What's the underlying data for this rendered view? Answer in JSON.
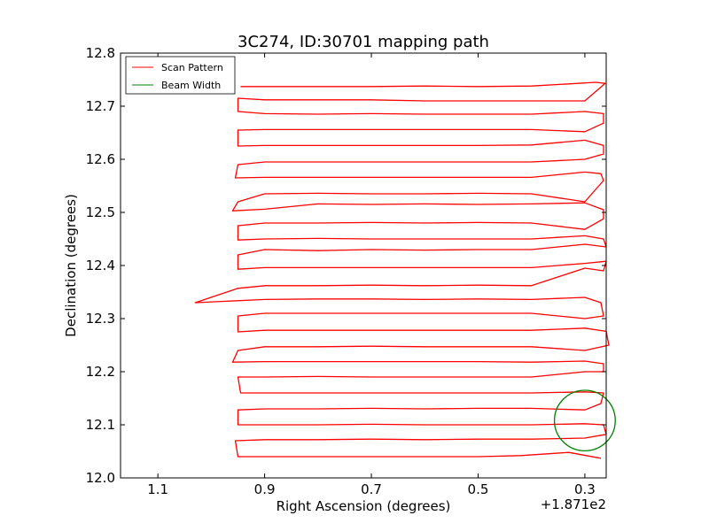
{
  "chart_data": {
    "type": "line",
    "title": "3C274, ID:30701 mapping path",
    "xlabel": "Right Ascension (degrees)",
    "ylabel": "Declination (degrees)",
    "x_offset_label": "+1.871e2",
    "xlim": [
      1.17,
      0.26
    ],
    "ylim": [
      12.0,
      12.8
    ],
    "x_inverted": true,
    "xticks": [
      1.1,
      0.9,
      0.7,
      0.5,
      0.3
    ],
    "xtick_labels": [
      "1.1",
      "0.9",
      "0.7",
      "0.5",
      "0.3"
    ],
    "yticks": [
      12.0,
      12.1,
      12.2,
      12.3,
      12.4,
      12.5,
      12.6,
      12.7,
      12.8
    ],
    "ytick_labels": [
      "12.0",
      "12.1",
      "12.2",
      "12.3",
      "12.4",
      "12.5",
      "12.6",
      "12.7",
      "12.8"
    ],
    "grid": false,
    "legend_position": "top-left",
    "series": [
      {
        "name": "Scan Pattern",
        "color": "#ff0000",
        "points": [
          [
            0.27,
            12.037
          ],
          [
            0.33,
            12.048
          ],
          [
            0.42,
            12.042
          ],
          [
            0.5,
            12.04
          ],
          [
            0.6,
            12.04
          ],
          [
            0.7,
            12.04
          ],
          [
            0.8,
            12.04
          ],
          [
            0.9,
            12.04
          ],
          [
            0.95,
            12.04
          ],
          [
            0.955,
            12.07
          ],
          [
            0.9,
            12.072
          ],
          [
            0.8,
            12.072
          ],
          [
            0.7,
            12.073
          ],
          [
            0.6,
            12.072
          ],
          [
            0.5,
            12.073
          ],
          [
            0.4,
            12.073
          ],
          [
            0.3,
            12.075
          ],
          [
            0.26,
            12.082
          ],
          [
            0.265,
            12.1
          ],
          [
            0.3,
            12.102
          ],
          [
            0.4,
            12.1
          ],
          [
            0.5,
            12.1
          ],
          [
            0.6,
            12.1
          ],
          [
            0.7,
            12.101
          ],
          [
            0.8,
            12.1
          ],
          [
            0.9,
            12.1
          ],
          [
            0.95,
            12.1
          ],
          [
            0.95,
            12.128
          ],
          [
            0.9,
            12.13
          ],
          [
            0.8,
            12.13
          ],
          [
            0.7,
            12.131
          ],
          [
            0.6,
            12.13
          ],
          [
            0.5,
            12.131
          ],
          [
            0.4,
            12.131
          ],
          [
            0.3,
            12.128
          ],
          [
            0.27,
            12.14
          ],
          [
            0.265,
            12.16
          ],
          [
            0.3,
            12.162
          ],
          [
            0.4,
            12.16
          ],
          [
            0.5,
            12.16
          ],
          [
            0.6,
            12.16
          ],
          [
            0.7,
            12.16
          ],
          [
            0.8,
            12.16
          ],
          [
            0.9,
            12.16
          ],
          [
            0.945,
            12.16
          ],
          [
            0.95,
            12.19
          ],
          [
            0.9,
            12.19
          ],
          [
            0.8,
            12.191
          ],
          [
            0.7,
            12.19
          ],
          [
            0.6,
            12.19
          ],
          [
            0.5,
            12.19
          ],
          [
            0.4,
            12.19
          ],
          [
            0.3,
            12.2
          ],
          [
            0.265,
            12.2
          ],
          [
            0.265,
            12.215
          ],
          [
            0.3,
            12.22
          ],
          [
            0.4,
            12.218
          ],
          [
            0.5,
            12.219
          ],
          [
            0.6,
            12.219
          ],
          [
            0.7,
            12.219
          ],
          [
            0.8,
            12.219
          ],
          [
            0.9,
            12.219
          ],
          [
            0.96,
            12.218
          ],
          [
            0.95,
            12.24
          ],
          [
            0.9,
            12.247
          ],
          [
            0.8,
            12.247
          ],
          [
            0.7,
            12.248
          ],
          [
            0.6,
            12.247
          ],
          [
            0.5,
            12.247
          ],
          [
            0.4,
            12.247
          ],
          [
            0.3,
            12.24
          ],
          [
            0.255,
            12.25
          ],
          [
            0.26,
            12.276
          ],
          [
            0.3,
            12.282
          ],
          [
            0.4,
            12.278
          ],
          [
            0.5,
            12.278
          ],
          [
            0.6,
            12.278
          ],
          [
            0.7,
            12.278
          ],
          [
            0.8,
            12.278
          ],
          [
            0.9,
            12.278
          ],
          [
            0.95,
            12.275
          ],
          [
            0.95,
            12.305
          ],
          [
            0.9,
            12.31
          ],
          [
            0.8,
            12.31
          ],
          [
            0.7,
            12.31
          ],
          [
            0.6,
            12.31
          ],
          [
            0.5,
            12.31
          ],
          [
            0.4,
            12.31
          ],
          [
            0.3,
            12.3
          ],
          [
            0.265,
            12.305
          ],
          [
            0.27,
            12.33
          ],
          [
            0.3,
            12.34
          ],
          [
            0.4,
            12.336
          ],
          [
            0.5,
            12.337
          ],
          [
            0.6,
            12.336
          ],
          [
            0.7,
            12.337
          ],
          [
            0.8,
            12.337
          ],
          [
            0.9,
            12.336
          ],
          [
            1.03,
            12.33
          ],
          [
            0.95,
            12.357
          ],
          [
            0.9,
            12.362
          ],
          [
            0.8,
            12.362
          ],
          [
            0.7,
            12.363
          ],
          [
            0.6,
            12.362
          ],
          [
            0.5,
            12.363
          ],
          [
            0.4,
            12.362
          ],
          [
            0.3,
            12.395
          ],
          [
            0.265,
            12.39
          ],
          [
            0.26,
            12.408
          ],
          [
            0.3,
            12.404
          ],
          [
            0.4,
            12.396
          ],
          [
            0.5,
            12.396
          ],
          [
            0.6,
            12.396
          ],
          [
            0.7,
            12.396
          ],
          [
            0.8,
            12.396
          ],
          [
            0.9,
            12.396
          ],
          [
            0.95,
            12.393
          ],
          [
            0.95,
            12.42
          ],
          [
            0.9,
            12.43
          ],
          [
            0.8,
            12.428
          ],
          [
            0.7,
            12.43
          ],
          [
            0.6,
            12.429
          ],
          [
            0.5,
            12.43
          ],
          [
            0.4,
            12.43
          ],
          [
            0.3,
            12.44
          ],
          [
            0.26,
            12.435
          ],
          [
            0.265,
            12.45
          ],
          [
            0.3,
            12.456
          ],
          [
            0.4,
            12.45
          ],
          [
            0.5,
            12.45
          ],
          [
            0.6,
            12.45
          ],
          [
            0.7,
            12.45
          ],
          [
            0.8,
            12.451
          ],
          [
            0.9,
            12.45
          ],
          [
            0.95,
            12.448
          ],
          [
            0.95,
            12.475
          ],
          [
            0.9,
            12.48
          ],
          [
            0.8,
            12.48
          ],
          [
            0.7,
            12.481
          ],
          [
            0.6,
            12.48
          ],
          [
            0.5,
            12.481
          ],
          [
            0.4,
            12.48
          ],
          [
            0.3,
            12.468
          ],
          [
            0.265,
            12.488
          ],
          [
            0.265,
            12.505
          ],
          [
            0.3,
            12.518
          ],
          [
            0.4,
            12.516
          ],
          [
            0.5,
            12.515
          ],
          [
            0.6,
            12.516
          ],
          [
            0.7,
            12.515
          ],
          [
            0.8,
            12.516
          ],
          [
            0.9,
            12.506
          ],
          [
            0.96,
            12.503
          ],
          [
            0.95,
            12.52
          ],
          [
            0.9,
            12.535
          ],
          [
            0.8,
            12.536
          ],
          [
            0.7,
            12.535
          ],
          [
            0.6,
            12.535
          ],
          [
            0.5,
            12.536
          ],
          [
            0.4,
            12.535
          ],
          [
            0.3,
            12.52
          ],
          [
            0.265,
            12.56
          ],
          [
            0.27,
            12.573
          ],
          [
            0.3,
            12.576
          ],
          [
            0.4,
            12.566
          ],
          [
            0.5,
            12.566
          ],
          [
            0.6,
            12.566
          ],
          [
            0.7,
            12.566
          ],
          [
            0.8,
            12.566
          ],
          [
            0.9,
            12.566
          ],
          [
            0.955,
            12.565
          ],
          [
            0.95,
            12.59
          ],
          [
            0.9,
            12.595
          ],
          [
            0.8,
            12.595
          ],
          [
            0.7,
            12.595
          ],
          [
            0.6,
            12.595
          ],
          [
            0.5,
            12.595
          ],
          [
            0.4,
            12.595
          ],
          [
            0.3,
            12.6
          ],
          [
            0.265,
            12.61
          ],
          [
            0.265,
            12.626
          ],
          [
            0.3,
            12.636
          ],
          [
            0.4,
            12.627
          ],
          [
            0.5,
            12.626
          ],
          [
            0.6,
            12.626
          ],
          [
            0.7,
            12.626
          ],
          [
            0.8,
            12.626
          ],
          [
            0.9,
            12.626
          ],
          [
            0.95,
            12.625
          ],
          [
            0.95,
            12.655
          ],
          [
            0.9,
            12.656
          ],
          [
            0.8,
            12.656
          ],
          [
            0.7,
            12.656
          ],
          [
            0.6,
            12.656
          ],
          [
            0.5,
            12.656
          ],
          [
            0.4,
            12.656
          ],
          [
            0.3,
            12.652
          ],
          [
            0.265,
            12.668
          ],
          [
            0.265,
            12.686
          ],
          [
            0.3,
            12.69
          ],
          [
            0.4,
            12.685
          ],
          [
            0.5,
            12.685
          ],
          [
            0.6,
            12.685
          ],
          [
            0.7,
            12.686
          ],
          [
            0.8,
            12.685
          ],
          [
            0.9,
            12.686
          ],
          [
            0.95,
            12.69
          ],
          [
            0.95,
            12.715
          ],
          [
            0.9,
            12.712
          ],
          [
            0.8,
            12.712
          ],
          [
            0.7,
            12.712
          ],
          [
            0.6,
            12.71
          ],
          [
            0.5,
            12.71
          ],
          [
            0.4,
            12.71
          ],
          [
            0.3,
            12.71
          ],
          [
            0.262,
            12.743
          ],
          [
            0.28,
            12.745
          ],
          [
            0.33,
            12.742
          ],
          [
            0.4,
            12.738
          ],
          [
            0.5,
            12.737
          ],
          [
            0.6,
            12.738
          ],
          [
            0.7,
            12.737
          ],
          [
            0.8,
            12.737
          ],
          [
            0.9,
            12.737
          ],
          [
            0.945,
            12.737
          ]
        ]
      },
      {
        "name": "Beam Width",
        "color": "#008000",
        "shape": "circle",
        "center": [
          0.3,
          12.108
        ],
        "radius": 0.057
      }
    ]
  }
}
